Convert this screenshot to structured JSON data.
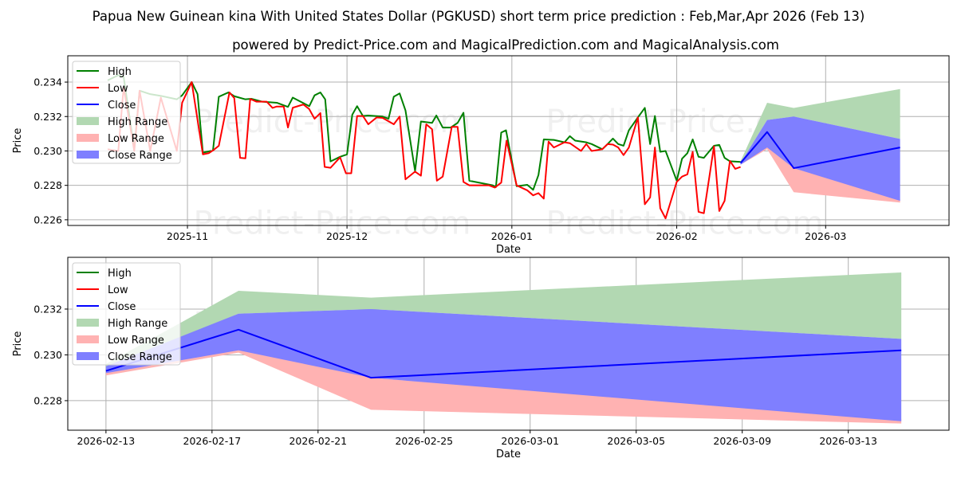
{
  "title": "Papua New Guinean kina With United States Dollar (PGKUSD) short term price prediction : Feb,Mar,Apr 2026 (Feb 13)",
  "subtitle": "powered by Predict-Price.com and MagicalPrediction.com and MagicalAnalysis.com",
  "watermark": "Predict-Price.com",
  "colors": {
    "high": "#008000",
    "low": "#ff0000",
    "close": "#0000ff",
    "high_range": "#b2d8b2",
    "low_range": "#ffb2b2",
    "close_range": "#7f7fff"
  },
  "chart_data": [
    {
      "type": "line",
      "x_unit": "days since 2025-11-01",
      "xlabel": "Date",
      "ylabel": "Price",
      "xlim": [
        -22.5,
        143.2
      ],
      "ylim": [
        0.22567,
        0.23553
      ],
      "xticks": [
        {
          "x": 0,
          "label": "2025-11"
        },
        {
          "x": 30,
          "label": "2025-12"
        },
        {
          "x": 61,
          "label": "2026-01"
        },
        {
          "x": 92,
          "label": "2026-02"
        },
        {
          "x": 120,
          "label": "2026-03"
        }
      ],
      "yticks": [
        0.226,
        0.228,
        0.23,
        0.232,
        0.234
      ],
      "ytick_labels": [
        "0.226",
        "0.228",
        "0.230",
        "0.232",
        "0.234"
      ],
      "legend": [
        "High",
        "Low",
        "Close",
        "High Range",
        "Low Range",
        "Close Range"
      ],
      "legend_position": "top-left",
      "series": [
        {
          "name": "High",
          "points": [
            [
              -15,
              0.2341
            ],
            [
              -13,
              0.2344
            ],
            [
              -12,
              0.2343
            ],
            [
              -10,
              0.2301
            ],
            [
              -9,
              0.2335
            ],
            [
              -7,
              0.2333
            ],
            [
              -5,
              0.2332
            ],
            [
              -2,
              0.233
            ],
            [
              -1,
              0.23323
            ],
            [
              0.8,
              0.234
            ],
            [
              1.9,
              0.2333
            ],
            [
              2.9,
              0.2299
            ],
            [
              4.8,
              0.23003
            ],
            [
              5.9,
              0.23315
            ],
            [
              7.7,
              0.2334
            ],
            [
              8.8,
              0.23318
            ],
            [
              10.9,
              0.233
            ],
            [
              12,
              0.23303
            ],
            [
              14.1,
              0.23286
            ],
            [
              16.8,
              0.2328
            ],
            [
              18.9,
              0.23256
            ],
            [
              19.8,
              0.2331
            ],
            [
              22.9,
              0.2326
            ],
            [
              23.9,
              0.23323
            ],
            [
              25,
              0.2334
            ],
            [
              25.9,
              0.233
            ],
            [
              26.9,
              0.22939
            ],
            [
              28.7,
              0.22966
            ],
            [
              30,
              0.2298
            ],
            [
              31,
              0.23211
            ],
            [
              31.9,
              0.2326
            ],
            [
              33,
              0.23203
            ],
            [
              34,
              0.23206
            ],
            [
              36.7,
              0.232
            ],
            [
              37.8,
              0.23187
            ],
            [
              38.8,
              0.23315
            ],
            [
              39.9,
              0.23334
            ],
            [
              41,
              0.23235
            ],
            [
              42.8,
              0.22883
            ],
            [
              43.9,
              0.23171
            ],
            [
              46,
              0.23163
            ],
            [
              46.8,
              0.23206
            ],
            [
              48,
              0.23136
            ],
            [
              49.5,
              0.23136
            ],
            [
              50.8,
              0.23163
            ],
            [
              51.9,
              0.23222
            ],
            [
              53,
              0.22827
            ],
            [
              57.4,
              0.228
            ],
            [
              58,
              0.2279
            ],
            [
              59,
              0.23107
            ],
            [
              59.9,
              0.2312
            ],
            [
              61.9,
              0.22795
            ],
            [
              63.9,
              0.22803
            ],
            [
              65,
              0.22774
            ],
            [
              66,
              0.2286
            ],
            [
              67,
              0.23067
            ],
            [
              68.9,
              0.23064
            ],
            [
              70.9,
              0.2305
            ],
            [
              71.9,
              0.23086
            ],
            [
              72.9,
              0.2306
            ],
            [
              75,
              0.2305
            ],
            [
              76,
              0.2304
            ],
            [
              78,
              0.2301
            ],
            [
              79,
              0.2304
            ],
            [
              80,
              0.23072
            ],
            [
              81,
              0.2304
            ],
            [
              82,
              0.2303
            ],
            [
              83,
              0.2312
            ],
            [
              84.7,
              0.23195
            ],
            [
              86,
              0.2325
            ],
            [
              87,
              0.2304
            ],
            [
              87.9,
              0.23203
            ],
            [
              88.9,
              0.22995
            ],
            [
              89.9,
              0.23
            ],
            [
              92,
              0.22827
            ],
            [
              93,
              0.22955
            ],
            [
              94,
              0.22987
            ],
            [
              95,
              0.23067
            ],
            [
              96.1,
              0.22966
            ],
            [
              97.1,
              0.2296
            ],
            [
              99,
              0.2303
            ],
            [
              100,
              0.23035
            ],
            [
              101,
              0.2296
            ],
            [
              102,
              0.2294
            ],
            [
              104,
              0.22936
            ]
          ]
        },
        {
          "name": "Low",
          "points": [
            [
              -15,
              0.2301
            ],
            [
              -13,
              0.23
            ],
            [
              -12,
              0.2337
            ],
            [
              -10,
              0.23
            ],
            [
              -9,
              0.2335
            ],
            [
              -7,
              0.23
            ],
            [
              -5,
              0.2331
            ],
            [
              -2,
              0.23
            ],
            [
              -1,
              0.2328
            ],
            [
              0.8,
              0.234
            ],
            [
              2.9,
              0.2298
            ],
            [
              4,
              0.22987
            ],
            [
              4.8,
              0.23003
            ],
            [
              5.9,
              0.2303
            ],
            [
              7.9,
              0.2334
            ],
            [
              8.8,
              0.23307
            ],
            [
              9.9,
              0.2296
            ],
            [
              10.9,
              0.22957
            ],
            [
              11.8,
              0.23302
            ],
            [
              13,
              0.23286
            ],
            [
              14.9,
              0.23286
            ],
            [
              16,
              0.2325
            ],
            [
              16.8,
              0.23258
            ],
            [
              18.1,
              0.23258
            ],
            [
              18.9,
              0.23136
            ],
            [
              19.8,
              0.23251
            ],
            [
              21.8,
              0.2327
            ],
            [
              22.9,
              0.23243
            ],
            [
              23.9,
              0.23187
            ],
            [
              25,
              0.2322
            ],
            [
              25.8,
              0.22907
            ],
            [
              26.9,
              0.22902
            ],
            [
              28.7,
              0.22963
            ],
            [
              29.8,
              0.2287
            ],
            [
              30.8,
              0.2287
            ],
            [
              31.9,
              0.23203
            ],
            [
              33,
              0.23203
            ],
            [
              34,
              0.23155
            ],
            [
              35.6,
              0.23195
            ],
            [
              36.7,
              0.23192
            ],
            [
              38.8,
              0.23155
            ],
            [
              39.9,
              0.232
            ],
            [
              41,
              0.22835
            ],
            [
              42.8,
              0.2288
            ],
            [
              43.9,
              0.22856
            ],
            [
              44.9,
              0.23155
            ],
            [
              46,
              0.23126
            ],
            [
              46.9,
              0.22827
            ],
            [
              48,
              0.22851
            ],
            [
              49.7,
              0.2314
            ],
            [
              50.8,
              0.2314
            ],
            [
              51.9,
              0.2282
            ],
            [
              53,
              0.228
            ],
            [
              56.7,
              0.228
            ],
            [
              57.8,
              0.22787
            ],
            [
              59,
              0.22816
            ],
            [
              60,
              0.2306
            ],
            [
              61.9,
              0.228
            ],
            [
              63.9,
              0.22771
            ],
            [
              65,
              0.22742
            ],
            [
              66,
              0.22755
            ],
            [
              67,
              0.22723
            ],
            [
              67.9,
              0.23054
            ],
            [
              68.9,
              0.2302
            ],
            [
              70.9,
              0.2305
            ],
            [
              71.9,
              0.23045
            ],
            [
              74,
              0.23
            ],
            [
              75,
              0.2304
            ],
            [
              76,
              0.23
            ],
            [
              78,
              0.2301
            ],
            [
              79,
              0.2304
            ],
            [
              80,
              0.23037
            ],
            [
              81,
              0.2302
            ],
            [
              82,
              0.22976
            ],
            [
              83,
              0.2302
            ],
            [
              84.7,
              0.23195
            ],
            [
              86,
              0.2269
            ],
            [
              87,
              0.2273
            ],
            [
              87.9,
              0.2302
            ],
            [
              88.9,
              0.22667
            ],
            [
              89.9,
              0.22608
            ],
            [
              92,
              0.2282
            ],
            [
              93,
              0.22851
            ],
            [
              94,
              0.22864
            ],
            [
              95,
              0.22995
            ],
            [
              96.1,
              0.22646
            ],
            [
              97.1,
              0.22638
            ],
            [
              99,
              0.23027
            ],
            [
              100,
              0.22651
            ],
            [
              101,
              0.2271
            ],
            [
              102,
              0.22942
            ],
            [
              103,
              0.22896
            ],
            [
              104,
              0.22907
            ]
          ]
        },
        {
          "name": "Close",
          "points": [
            [
              104,
              0.2293
            ],
            [
              109,
              0.2311
            ],
            [
              114,
              0.229
            ],
            [
              134,
              0.2302
            ]
          ]
        }
      ],
      "bands": [
        {
          "name": "High Range",
          "x": [
            104,
            109,
            114,
            134
          ],
          "upper": [
            0.2294,
            0.2328,
            0.2325,
            0.2336
          ],
          "lower": [
            0.2293,
            0.2318,
            0.232,
            0.2307
          ]
        },
        {
          "name": "Low Range",
          "x": [
            104,
            109,
            114,
            134
          ],
          "upper": [
            0.2293,
            0.2304,
            0.229,
            0.2272
          ],
          "lower": [
            0.2292,
            0.2301,
            0.2276,
            0.227
          ]
        },
        {
          "name": "Close Range",
          "x": [
            104,
            109,
            114,
            134
          ],
          "upper": [
            0.2293,
            0.2318,
            0.232,
            0.2307
          ],
          "lower": [
            0.2292,
            0.2302,
            0.229,
            0.2271
          ]
        }
      ]
    },
    {
      "type": "line",
      "x_unit": "days since 2025-11-01",
      "xlabel": "Date",
      "ylabel": "Price",
      "xlim": [
        102.56,
        135.8
      ],
      "ylim": [
        0.22671,
        0.23426
      ],
      "xticks": [
        {
          "x": 104,
          "label": "2026-02-13"
        },
        {
          "x": 108,
          "label": "2026-02-17"
        },
        {
          "x": 112,
          "label": "2026-02-21"
        },
        {
          "x": 116,
          "label": "2026-02-25"
        },
        {
          "x": 120,
          "label": "2026-03-01"
        },
        {
          "x": 124,
          "label": "2026-03-05"
        },
        {
          "x": 128,
          "label": "2026-03-09"
        },
        {
          "x": 132,
          "label": "2026-03-13"
        }
      ],
      "yticks": [
        0.228,
        0.23,
        0.232
      ],
      "ytick_labels": [
        "0.228",
        "0.230",
        "0.232"
      ],
      "legend": [
        "High",
        "Low",
        "Close",
        "High Range",
        "Low Range",
        "Close Range"
      ],
      "legend_position": "top-left",
      "series": [
        {
          "name": "Close",
          "points": [
            [
              104,
              0.2293
            ],
            [
              109,
              0.2311
            ],
            [
              114,
              0.229
            ],
            [
              134,
              0.2302
            ]
          ]
        }
      ],
      "bands": [
        {
          "name": "High Range",
          "x": [
            104,
            109,
            114,
            134
          ],
          "upper": [
            0.2296,
            0.2328,
            0.2325,
            0.2336
          ],
          "lower": [
            0.2294,
            0.2318,
            0.232,
            0.2307
          ]
        },
        {
          "name": "Low Range",
          "x": [
            104,
            109,
            114,
            134
          ],
          "upper": [
            0.2293,
            0.2304,
            0.229,
            0.2272
          ],
          "lower": [
            0.2291,
            0.2301,
            0.2276,
            0.227
          ]
        },
        {
          "name": "Close Range",
          "x": [
            104,
            109,
            114,
            134
          ],
          "upper": [
            0.2295,
            0.2318,
            0.232,
            0.2307
          ],
          "lower": [
            0.2292,
            0.2302,
            0.229,
            0.2271
          ]
        }
      ]
    }
  ]
}
